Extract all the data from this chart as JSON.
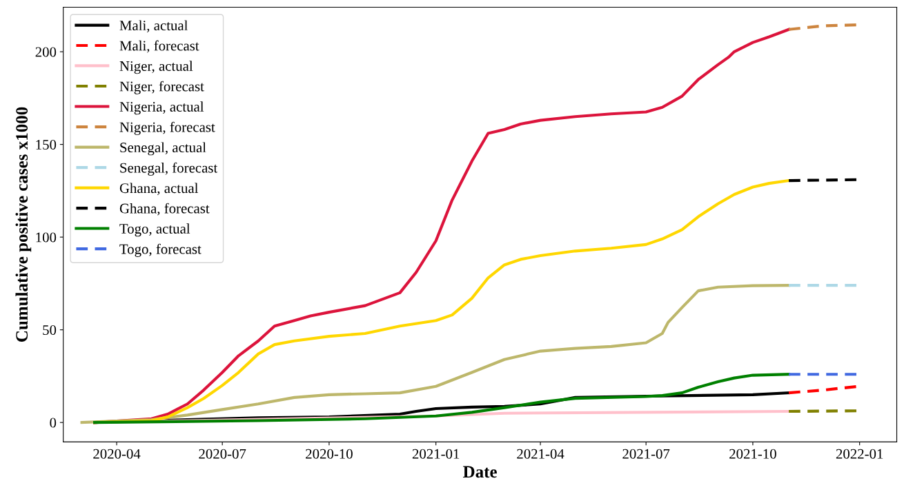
{
  "chart_data": {
    "type": "line",
    "xlabel": "Date",
    "ylabel": "Cumulative positive cases x1000",
    "xlim": [
      "2020-02-15",
      "2022-02-02"
    ],
    "ylim": [
      -10.5,
      224
    ],
    "xticks": [
      "2020-04",
      "2020-07",
      "2020-10",
      "2021-01",
      "2021-04",
      "2021-07",
      "2021-10",
      "2022-01"
    ],
    "yticks": [
      0,
      50,
      100,
      150,
      200
    ],
    "grid": false,
    "legend": "top left",
    "series": [
      {
        "name": "Mali, actual",
        "color": "#000000",
        "line_style": "solid",
        "x": [
          "2020-03-13",
          "2020-06-01",
          "2020-08-01",
          "2020-10-01",
          "2020-12-01",
          "2020-12-15",
          "2021-01-01",
          "2021-02-01",
          "2021-03-01",
          "2021-04-01",
          "2021-05-01",
          "2021-07-01",
          "2021-10-01",
          "2021-11-01"
        ],
        "values": [
          0,
          1.5,
          2.5,
          3,
          4.5,
          6,
          7.5,
          8.3,
          8.7,
          10,
          13.5,
          14.2,
          15,
          16
        ]
      },
      {
        "name": "Mali, forecast",
        "color": "#ff0000",
        "line_style": "dashed",
        "x": [
          "2021-11-01",
          "2021-12-01",
          "2021-12-31"
        ],
        "values": [
          16,
          17.5,
          19.5
        ]
      },
      {
        "name": "Niger, actual",
        "color": "#ffc0cb",
        "line_style": "solid",
        "x": [
          "2020-03-13",
          "2020-06-01",
          "2021-01-01",
          "2021-03-01",
          "2021-11-01"
        ],
        "values": [
          0,
          1,
          3.5,
          5,
          6
        ]
      },
      {
        "name": "Niger, forecast",
        "color": "#808000",
        "line_style": "dashed",
        "x": [
          "2021-11-01",
          "2021-12-31"
        ],
        "values": [
          6,
          6.3
        ]
      },
      {
        "name": "Nigeria, actual",
        "color": "#dc143c",
        "line_style": "solid",
        "x": [
          "2020-03-13",
          "2020-05-01",
          "2020-05-15",
          "2020-06-01",
          "2020-06-15",
          "2020-07-01",
          "2020-07-15",
          "2020-08-01",
          "2020-08-15",
          "2020-09-01",
          "2020-09-15",
          "2020-10-01",
          "2020-11-01",
          "2020-12-01",
          "2020-12-15",
          "2021-01-01",
          "2021-01-15",
          "2021-02-01",
          "2021-02-15",
          "2021-03-01",
          "2021-03-15",
          "2021-04-01",
          "2021-05-01",
          "2021-06-01",
          "2021-07-01",
          "2021-07-15",
          "2021-08-01",
          "2021-08-15",
          "2021-09-01",
          "2021-09-10",
          "2021-09-15",
          "2021-10-01",
          "2021-10-15",
          "2021-11-01"
        ],
        "values": [
          0,
          2,
          4.5,
          10,
          17.5,
          27,
          36,
          44,
          52,
          55,
          57.5,
          59.5,
          63,
          70,
          81,
          98,
          120,
          141,
          156,
          158,
          161,
          163,
          165,
          166.5,
          167.5,
          170,
          176,
          185,
          193,
          197,
          200,
          205,
          208,
          212
        ]
      },
      {
        "name": "Nigeria, forecast",
        "color": "#cd853f",
        "line_style": "dashed",
        "x": [
          "2021-11-01",
          "2021-12-01",
          "2021-12-31"
        ],
        "values": [
          212,
          214,
          214.5
        ]
      },
      {
        "name": "Senegal, actual",
        "color": "#bdb76b",
        "line_style": "solid",
        "x": [
          "2020-03-02",
          "2020-05-01",
          "2020-06-01",
          "2020-07-01",
          "2020-08-01",
          "2020-09-01",
          "2020-10-01",
          "2020-11-01",
          "2020-12-01",
          "2021-01-01",
          "2021-02-01",
          "2021-03-01",
          "2021-04-01",
          "2021-05-01",
          "2021-06-01",
          "2021-07-01",
          "2021-07-15",
          "2021-07-20",
          "2021-08-01",
          "2021-08-15",
          "2021-09-01",
          "2021-10-01",
          "2021-11-01"
        ],
        "values": [
          0,
          1.5,
          4,
          7,
          10,
          13.5,
          15,
          15.5,
          16,
          19.5,
          27,
          34,
          38.5,
          40,
          41,
          43,
          48,
          54,
          62,
          71,
          73,
          73.8,
          74
        ]
      },
      {
        "name": "Senegal, forecast",
        "color": "#add8e6",
        "line_style": "dashed",
        "x": [
          "2021-11-01",
          "2021-12-31"
        ],
        "values": [
          74,
          74
        ]
      },
      {
        "name": "Ghana, actual",
        "color": "#ffd700",
        "line_style": "solid",
        "x": [
          "2020-03-13",
          "2020-05-01",
          "2020-05-15",
          "2020-06-01",
          "2020-06-15",
          "2020-07-01",
          "2020-07-15",
          "2020-08-01",
          "2020-08-15",
          "2020-09-01",
          "2020-10-01",
          "2020-11-01",
          "2020-12-01",
          "2021-01-01",
          "2021-01-15",
          "2021-02-01",
          "2021-02-15",
          "2021-03-01",
          "2021-03-15",
          "2021-04-01",
          "2021-05-01",
          "2021-06-01",
          "2021-07-01",
          "2021-07-15",
          "2021-08-01",
          "2021-08-15",
          "2021-09-01",
          "2021-09-15",
          "2021-10-01",
          "2021-10-15",
          "2021-11-01"
        ],
        "values": [
          0,
          1,
          3,
          8,
          13,
          20,
          27,
          37,
          42,
          44,
          46.5,
          48,
          52,
          55,
          58,
          67,
          78,
          85,
          88,
          90,
          92.5,
          94,
          96,
          99,
          104,
          111,
          118,
          123,
          127,
          129,
          130.5
        ]
      },
      {
        "name": "Ghana, forecast",
        "color": "#000000",
        "line_style": "dashed",
        "x": [
          "2021-11-01",
          "2021-12-31"
        ],
        "values": [
          130.5,
          131
        ]
      },
      {
        "name": "Togo, actual",
        "color": "#008000",
        "line_style": "solid",
        "x": [
          "2020-03-13",
          "2020-08-01",
          "2020-11-01",
          "2021-01-01",
          "2021-02-01",
          "2021-03-01",
          "2021-04-01",
          "2021-05-01",
          "2021-07-01",
          "2021-07-15",
          "2021-08-01",
          "2021-08-15",
          "2021-09-01",
          "2021-09-15",
          "2021-10-01",
          "2021-11-01"
        ],
        "values": [
          0,
          1,
          2,
          3.5,
          5.5,
          8,
          11,
          13,
          14,
          14.5,
          16,
          19,
          22,
          24,
          25.5,
          26
        ]
      },
      {
        "name": "Togo, forecast",
        "color": "#4169e1",
        "line_style": "dashed",
        "x": [
          "2021-11-01",
          "2021-12-31"
        ],
        "values": [
          26,
          26
        ]
      }
    ]
  }
}
